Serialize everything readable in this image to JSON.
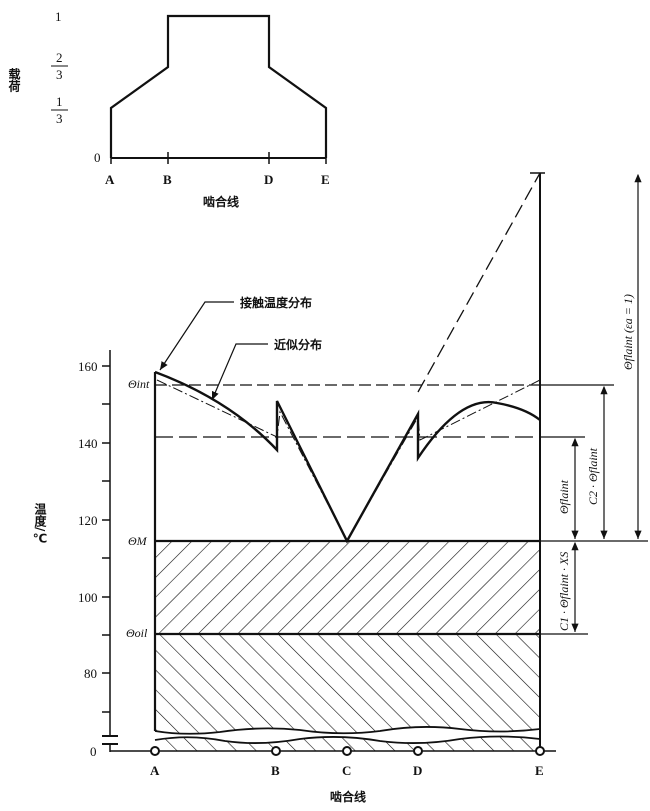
{
  "load_chart": {
    "ylabel": "载荷",
    "ytick_one": "1",
    "ytick_two_thirds": {
      "num": "2",
      "den": "3"
    },
    "ytick_one_third": {
      "num": "1",
      "den": "3"
    },
    "ytick_zero": "0",
    "points": [
      "A",
      "B",
      "D",
      "E"
    ],
    "xlabel": "啮合线"
  },
  "temp_chart": {
    "ylabel": "温度/℃",
    "yticks": [
      "160",
      "140",
      "120",
      "100",
      "80",
      "0"
    ],
    "points": [
      "A",
      "B",
      "C",
      "D",
      "E"
    ],
    "xlabel": "啮合线",
    "levels": {
      "int": "Θint",
      "M": "ΘM",
      "oil": "Θoil"
    },
    "callouts": {
      "contact": "接触温度分布",
      "approx": "近似分布"
    },
    "dimensions": {
      "flaint": "Θflaint",
      "c2": "C2 · Θflaint",
      "full": "Θflaint (εa = 1)",
      "c1": "C1 · Θflaint · XS"
    }
  }
}
